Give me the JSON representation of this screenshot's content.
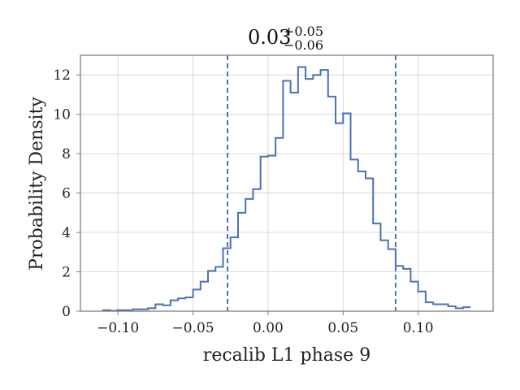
{
  "chart_data": {
    "type": "histogram",
    "title": {
      "value": "0.03",
      "upper": "+0.05",
      "lower": "−0.06"
    },
    "xlabel": "recalib L1 phase 9",
    "ylabel": "Probability Density",
    "xlim": [
      -0.125,
      0.15
    ],
    "ylim": [
      0,
      13
    ],
    "xticks": [
      -0.1,
      -0.05,
      0.0,
      0.05,
      0.1
    ],
    "xtick_labels": [
      "−0.10",
      "−0.05",
      "0.00",
      "0.05",
      "0.10"
    ],
    "yticks": [
      0,
      2,
      4,
      6,
      8,
      10,
      12
    ],
    "ytick_labels": [
      "0",
      "2",
      "4",
      "6",
      "8",
      "10",
      "12"
    ],
    "grid": true,
    "line_color": "#4c72b0",
    "quantile_lines": [
      -0.027,
      0.085
    ],
    "bin_edges": [
      -0.1105,
      -0.105,
      -0.1005,
      -0.095,
      -0.09,
      -0.085,
      -0.08,
      -0.075,
      -0.07,
      -0.065,
      -0.06,
      -0.055,
      -0.05,
      -0.045,
      -0.04,
      -0.035,
      -0.03,
      -0.025,
      -0.02,
      -0.015,
      -0.01,
      -0.005,
      0.0,
      0.005,
      0.01,
      0.015,
      0.02,
      0.025,
      0.03,
      0.035,
      0.04,
      0.045,
      0.05,
      0.055,
      0.06,
      0.065,
      0.07,
      0.075,
      0.08,
      0.085,
      0.09,
      0.095,
      0.1,
      0.105,
      0.11,
      0.115,
      0.12,
      0.125,
      0.13,
      0.135
    ],
    "densities": [
      0.05,
      0.02,
      0.05,
      0.05,
      0.1,
      0.1,
      0.15,
      0.35,
      0.3,
      0.55,
      0.65,
      0.7,
      1.1,
      1.5,
      2.05,
      2.25,
      3.2,
      3.75,
      5.0,
      5.7,
      6.2,
      7.85,
      7.9,
      8.8,
      11.7,
      11.1,
      12.4,
      11.8,
      12.0,
      12.25,
      10.9,
      9.55,
      10.05,
      7.7,
      7.1,
      6.75,
      4.45,
      3.6,
      3.15,
      2.3,
      2.15,
      1.5,
      1.0,
      0.45,
      0.35,
      0.35,
      0.25,
      0.15,
      0.2
    ]
  }
}
